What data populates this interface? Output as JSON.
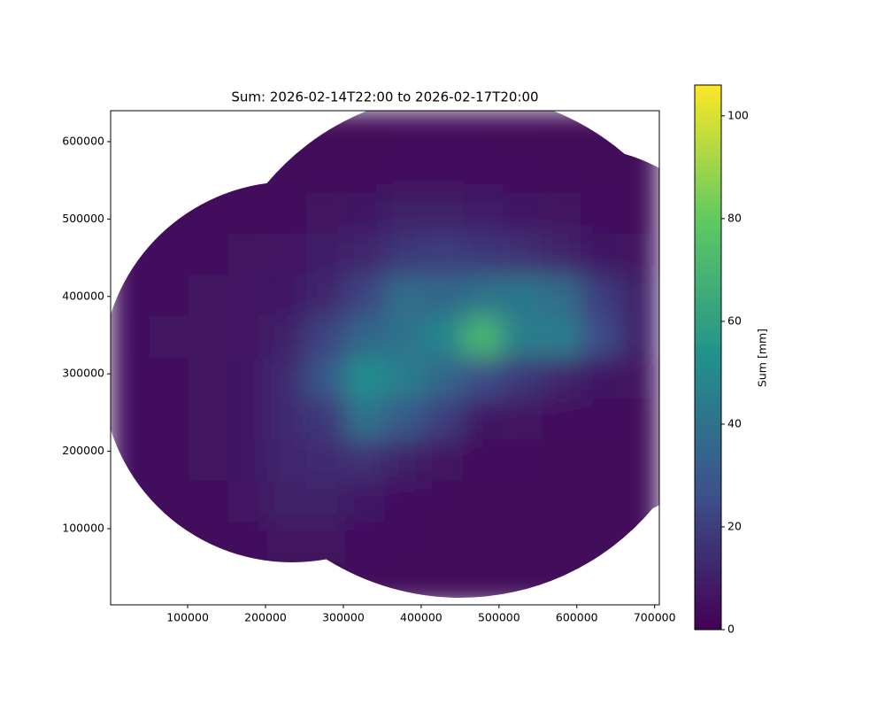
{
  "chart_data": {
    "type": "heatmap",
    "title": "Sum: 2026-02-14T22:00 to 2026-02-17T20:00",
    "xlim": [
      1000,
      706000
    ],
    "ylim": [
      1600,
      640000
    ],
    "xticks": [
      100000,
      200000,
      300000,
      400000,
      500000,
      600000,
      700000
    ],
    "yticks": [
      100000,
      200000,
      300000,
      400000,
      500000,
      600000
    ],
    "colormap": "viridis",
    "z": [
      [
        2,
        2,
        2,
        2,
        2,
        2,
        2,
        3,
        3,
        3,
        3,
        2,
        2,
        2
      ],
      [
        3,
        3,
        3,
        3,
        3,
        4,
        4,
        5,
        5,
        5,
        4,
        4,
        3,
        3
      ],
      [
        4,
        4,
        4,
        4,
        5,
        6,
        8,
        10,
        10,
        9,
        8,
        6,
        5,
        4
      ],
      [
        5,
        5,
        5,
        6,
        7,
        9,
        12,
        18,
        20,
        18,
        16,
        12,
        8,
        6
      ],
      [
        5,
        5,
        6,
        7,
        8,
        12,
        22,
        38,
        35,
        40,
        42,
        38,
        20,
        10
      ],
      [
        5,
        6,
        6,
        7,
        10,
        22,
        35,
        40,
        48,
        70,
        45,
        45,
        25,
        10
      ],
      [
        5,
        5,
        6,
        8,
        14,
        30,
        52,
        45,
        35,
        25,
        18,
        12,
        8,
        6
      ],
      [
        5,
        5,
        6,
        8,
        14,
        18,
        40,
        30,
        20,
        8,
        6,
        5,
        4,
        4
      ],
      [
        5,
        5,
        6,
        8,
        12,
        14,
        16,
        10,
        6,
        4,
        4,
        3,
        3,
        3
      ],
      [
        4,
        4,
        5,
        7,
        10,
        10,
        8,
        5,
        4,
        3,
        3,
        3,
        3,
        3
      ],
      [
        3,
        3,
        4,
        5,
        6,
        6,
        5,
        4,
        3,
        3,
        3,
        3,
        3,
        3
      ],
      [
        3,
        3,
        3,
        3,
        3,
        3,
        3,
        3,
        3,
        3,
        3,
        3,
        3,
        3
      ]
    ],
    "colorbar": {
      "label": "Sum [mm]",
      "lim": [
        0,
        106
      ],
      "ticks": [
        0,
        20,
        40,
        60,
        80,
        100
      ]
    }
  }
}
